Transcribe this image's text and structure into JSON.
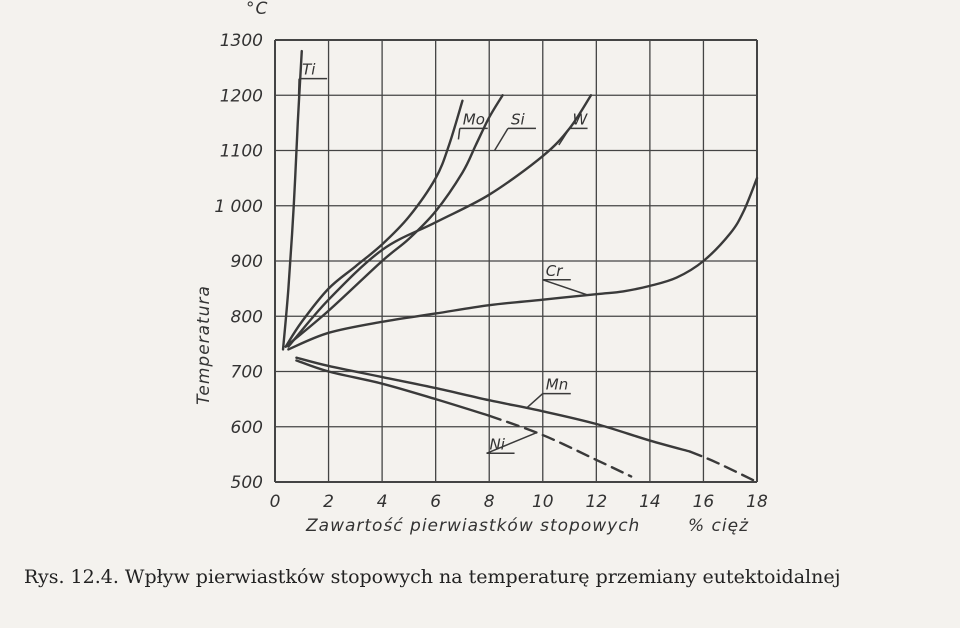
{
  "caption": "Rys. 12.4. Wpływ pierwiastków stopowych na temperaturę przemiany eutektoidalnej",
  "chart_data": {
    "type": "line",
    "xlabel": "Zawartość pierwiastków stopowych",
    "xunit": "% cięż",
    "ylabel": "Temperatura",
    "yunit": "°C",
    "xlim": [
      0,
      18
    ],
    "ylim": [
      500,
      1300
    ],
    "x_ticks": [
      0,
      2,
      4,
      6,
      8,
      10,
      12,
      14,
      16,
      18
    ],
    "y_ticks": [
      500,
      600,
      700,
      800,
      900,
      1000,
      1100,
      1200,
      1300
    ],
    "y_tick_labels": [
      "500",
      "600",
      "700",
      "800",
      "900",
      "1 000",
      "1100",
      "1200",
      "1300"
    ],
    "grid": true,
    "line_color": "#3a3a3a",
    "series": [
      {
        "name": "Ti",
        "x": [
          0.3,
          0.5,
          0.7,
          0.85,
          1.0
        ],
        "y": [
          740,
          850,
          1000,
          1150,
          1280
        ]
      },
      {
        "name": "Mo",
        "x": [
          0.4,
          1,
          2,
          3,
          4,
          5,
          6,
          6.5,
          7
        ],
        "y": [
          745,
          790,
          850,
          890,
          930,
          980,
          1050,
          1110,
          1190
        ]
      },
      {
        "name": "Si",
        "x": [
          0.4,
          2,
          4,
          5,
          6,
          7,
          7.5,
          8,
          8.5
        ],
        "y": [
          745,
          810,
          900,
          940,
          990,
          1060,
          1110,
          1160,
          1200
        ]
      },
      {
        "name": "W",
        "x": [
          0.5,
          2,
          4,
          6,
          8,
          10,
          11,
          11.8
        ],
        "y": [
          745,
          830,
          920,
          970,
          1020,
          1090,
          1140,
          1200
        ]
      },
      {
        "name": "Cr",
        "x": [
          0.5,
          2,
          4,
          6,
          8,
          10,
          12,
          13,
          14,
          15,
          16,
          17,
          17.5,
          18
        ],
        "y": [
          740,
          770,
          790,
          805,
          820,
          830,
          840,
          845,
          855,
          870,
          900,
          950,
          990,
          1050
        ]
      },
      {
        "name": "Mn",
        "x": [
          0.8,
          2,
          4,
          6,
          8,
          10,
          12,
          14,
          15.5
        ],
        "y": [
          725,
          710,
          690,
          670,
          648,
          628,
          605,
          575,
          555
        ]
      },
      {
        "name": "Mn",
        "dashed": true,
        "x": [
          15.5,
          16.5,
          18
        ],
        "y": [
          555,
          535,
          500
        ]
      },
      {
        "name": "Ni",
        "x": [
          0.8,
          2,
          4,
          6,
          8
        ],
        "y": [
          720,
          700,
          678,
          650,
          620
        ]
      },
      {
        "name": "Ni",
        "dashed": true,
        "x": [
          8,
          10,
          12,
          13.3
        ],
        "y": [
          620,
          585,
          540,
          510
        ]
      }
    ]
  }
}
